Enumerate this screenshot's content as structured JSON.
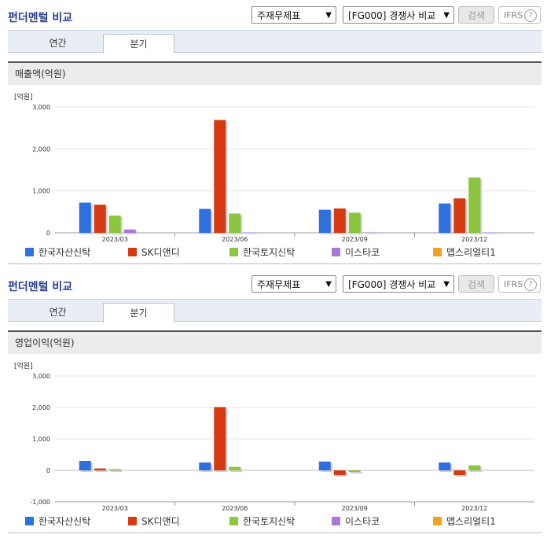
{
  "panels": [
    {
      "title": "펀더멘털 비교",
      "select1": "주재무제표",
      "select2": "[FG000] 경쟁사 비교",
      "search_label": "검색",
      "ifrs_label": "IFRS",
      "ifrs_help": "?",
      "tabs": [
        "연간",
        "분기"
      ],
      "active_tab": "분기",
      "chart_title": "매출액(억원)",
      "unit": "[억원]"
    },
    {
      "title": "펀더멘털 비교",
      "select1": "주재무제표",
      "select2": "[FG000] 경쟁사 비교",
      "search_label": "검색",
      "ifrs_label": "IFRS",
      "ifrs_help": "?",
      "tabs": [
        "연간",
        "분기"
      ],
      "active_tab": "분기",
      "chart_title": "영업이익(억원)",
      "unit": "[억원]"
    }
  ],
  "chart_data": [
    {
      "type": "bar",
      "title": "매출액(억원)",
      "ylabel": "[억원]",
      "categories": [
        "2023/03",
        "2023/06",
        "2023/09",
        "2023/12"
      ],
      "ylim": [
        0,
        3000
      ],
      "yticks": [
        0,
        1000,
        2000,
        3000
      ],
      "ytick_labels": [
        "0",
        "1,000",
        "2,000",
        "3,000"
      ],
      "grid": true,
      "legend": "bottom",
      "series": [
        {
          "name": "한국자산신탁",
          "color": "#2f6fde",
          "values": [
            720,
            570,
            550,
            700
          ]
        },
        {
          "name": "SK디앤디",
          "color": "#d63a12",
          "values": [
            670,
            2690,
            580,
            820
          ]
        },
        {
          "name": "한국토지신탁",
          "color": "#8cc63e",
          "values": [
            410,
            460,
            480,
            1320
          ]
        },
        {
          "name": "이스타코",
          "color": "#a779d8",
          "values": [
            80,
            10,
            10,
            10
          ]
        },
        {
          "name": "맵스리얼티1",
          "color": "#f5a021",
          "values": [
            0,
            0,
            0,
            0
          ]
        }
      ]
    },
    {
      "type": "bar",
      "title": "영업이익(억원)",
      "ylabel": "[억원]",
      "categories": [
        "2023/03",
        "2023/06",
        "2023/09",
        "2023/12"
      ],
      "ylim": [
        -1000,
        3000
      ],
      "yticks": [
        -1000,
        0,
        1000,
        2000,
        3000
      ],
      "ytick_labels": [
        "-1,000",
        "0",
        "1,000",
        "2,000",
        "3,000"
      ],
      "grid": true,
      "legend": "bottom",
      "series": [
        {
          "name": "한국자산신탁",
          "color": "#2f6fde",
          "values": [
            300,
            250,
            280,
            250
          ]
        },
        {
          "name": "SK디앤디",
          "color": "#d63a12",
          "values": [
            60,
            2010,
            -150,
            -150
          ]
        },
        {
          "name": "한국토지신탁",
          "color": "#8cc63e",
          "values": [
            40,
            110,
            -50,
            160
          ]
        },
        {
          "name": "이스타코",
          "color": "#a779d8",
          "values": [
            0,
            0,
            0,
            0
          ]
        },
        {
          "name": "맵스리얼티1",
          "color": "#f5a021",
          "values": [
            0,
            0,
            0,
            0
          ]
        }
      ]
    }
  ]
}
